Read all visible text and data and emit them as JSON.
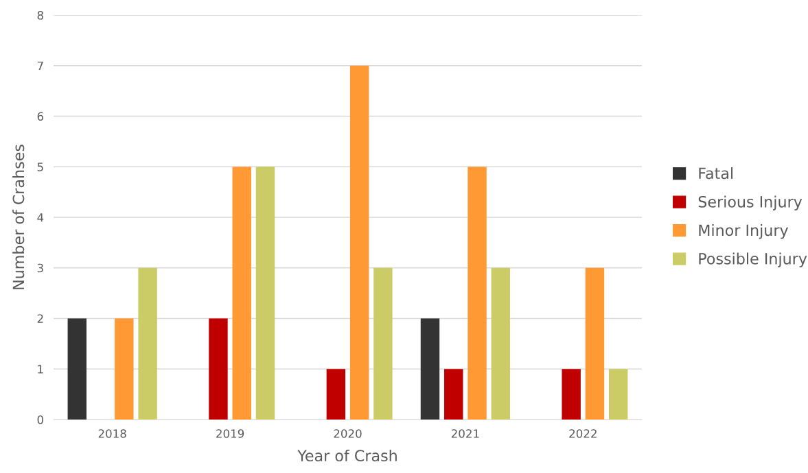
{
  "chart_data": {
    "type": "bar",
    "xlabel": "Year of Crash",
    "ylabel": "Number of Crahses",
    "categories": [
      "2018",
      "2019",
      "2020",
      "2021",
      "2022"
    ],
    "series": [
      {
        "name": "Fatal",
        "color": "#333333",
        "values": [
          2,
          0,
          0,
          2,
          0
        ]
      },
      {
        "name": "Serious Injury",
        "color": "#c00000",
        "values": [
          0,
          2,
          1,
          1,
          1
        ]
      },
      {
        "name": "Minor Injury",
        "color": "#ff9933",
        "values": [
          2,
          5,
          7,
          5,
          3
        ]
      },
      {
        "name": "Possible Injury",
        "color": "#cccc66",
        "values": [
          3,
          5,
          3,
          3,
          1
        ]
      }
    ],
    "ylim": [
      0,
      8
    ],
    "yticks": [
      0,
      1,
      2,
      3,
      4,
      5,
      6,
      7,
      8
    ],
    "grid": "y",
    "legend": "right"
  }
}
